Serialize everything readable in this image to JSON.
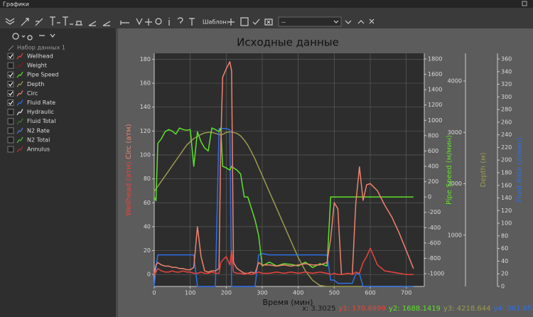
{
  "window": {
    "title": "Графики"
  },
  "toolbar": {
    "template_label": "Шаблон:",
    "template_value": "--"
  },
  "tree": {
    "root": "Набор данных 1",
    "items": [
      {
        "label": "Wellhead",
        "checked": true,
        "color": "#e8453c"
      },
      {
        "label": "Weight",
        "checked": false,
        "color": "#8b1a1a"
      },
      {
        "label": "Pipe Speed",
        "checked": true,
        "color": "#5ee02a"
      },
      {
        "label": "Depth",
        "checked": true,
        "color": "#9a9a50"
      },
      {
        "label": "Circ",
        "checked": true,
        "color": "#f0826e"
      },
      {
        "label": "Fluid Rate",
        "checked": true,
        "color": "#2f6fe6"
      },
      {
        "label": "Hydraulic",
        "checked": false,
        "color": "#e8e8e8"
      },
      {
        "label": "Fluid Total",
        "checked": false,
        "color": "#3d7a2a"
      },
      {
        "label": "N2 Rate",
        "checked": false,
        "color": "#4a7ad8"
      },
      {
        "label": "N2 Total",
        "checked": false,
        "color": "#4bc02a"
      },
      {
        "label": "Annulus",
        "checked": false,
        "color": "#b0302a"
      }
    ]
  },
  "chart_data": {
    "type": "line",
    "title": "Исходные данные",
    "x_label": "Время (мин)",
    "y_labels": [
      "Wellhead (атм)",
      "Circ (атм)"
    ],
    "y2_label": "Pipe Speed (м/мин)",
    "y3_label": "Depth (м)",
    "y4_label": "Fluid Rate (л/мин)",
    "grid": true,
    "xlim": [
      0,
      750
    ],
    "xticks": [
      0,
      100,
      200,
      300,
      400,
      500,
      600,
      700
    ],
    "ylim": [
      -10,
      185
    ],
    "yticks": [
      0,
      20,
      40,
      60,
      80,
      100,
      120,
      140,
      160,
      180
    ],
    "y2lim": [
      -1167,
      1874
    ],
    "y2ticks": [
      -1000,
      -800,
      -600,
      -400,
      -200,
      0,
      200,
      400,
      600,
      800,
      1000,
      1200,
      1400,
      1600,
      1800
    ],
    "y3lim": [
      0,
      4540
    ],
    "y3ticks": [
      1000,
      2000,
      3000,
      4000
    ],
    "y4lim": [
      0,
      369
    ],
    "y4ticks": [
      0,
      20,
      40,
      60,
      80,
      100,
      120,
      140,
      160,
      180,
      200,
      220,
      240,
      260,
      280,
      300,
      320,
      340,
      360
    ],
    "x": [
      0,
      5,
      10,
      20,
      30,
      40,
      50,
      60,
      70,
      80,
      90,
      100,
      110,
      120,
      130,
      140,
      150,
      160,
      170,
      180,
      185,
      190,
      200,
      210,
      215,
      220,
      230,
      240,
      250,
      260,
      270,
      280,
      290,
      300,
      320,
      340,
      360,
      380,
      400,
      420,
      440,
      460,
      480,
      490,
      500,
      510,
      520,
      540,
      550,
      560,
      570,
      580,
      590,
      600,
      620,
      640,
      660,
      680,
      700,
      720
    ],
    "series": [
      {
        "name": "Depth",
        "color": "#9a9a50",
        "axis": "y3",
        "values": [
          1850,
          1900,
          1950,
          2050,
          2150,
          2250,
          2350,
          2450,
          2550,
          2650,
          2750,
          2820,
          2880,
          2920,
          2960,
          2990,
          3000,
          3000,
          2980,
          2960,
          2950,
          2960,
          3000,
          3010,
          3010,
          3000,
          2980,
          2930,
          2850,
          2750,
          2620,
          2480,
          2320,
          2160,
          1840,
          1520,
          1200,
          880,
          560,
          300,
          120,
          20,
          0,
          0,
          0,
          0,
          0,
          0,
          0,
          0,
          0,
          0,
          0,
          0,
          0,
          0,
          0,
          0,
          0,
          0
        ]
      },
      {
        "name": "Fluid Rate",
        "color": "#2f6fe6",
        "axis": "y4",
        "values": [
          0,
          30,
          50,
          50,
          50,
          50,
          50,
          50,
          50,
          50,
          50,
          50,
          50,
          0,
          0,
          0,
          0,
          0,
          0,
          250,
          250,
          250,
          250,
          248,
          0,
          0,
          0,
          0,
          0,
          0,
          0,
          0,
          50,
          52,
          50,
          50,
          50,
          50,
          50,
          50,
          50,
          50,
          50,
          10,
          10,
          5,
          5,
          5,
          5,
          20,
          20,
          0,
          0,
          0,
          0,
          0,
          0,
          0,
          0,
          0
        ]
      },
      {
        "name": "Pipe Speed",
        "color": "#5ee02a",
        "axis": "y2",
        "values": [
          0,
          -50,
          700,
          760,
          850,
          880,
          860,
          820,
          900,
          880,
          870,
          880,
          400,
          850,
          720,
          640,
          600,
          900,
          880,
          850,
          900,
          400,
          380,
          350,
          400,
          380,
          350,
          300,
          0,
          0,
          -150,
          -300,
          -500,
          -900,
          -850,
          -900,
          -870,
          -880,
          -900,
          -850,
          -920,
          -870,
          -900,
          0,
          0,
          0,
          0,
          0,
          0,
          0,
          0,
          0,
          0,
          0,
          0,
          0,
          0,
          0,
          0,
          0
        ]
      },
      {
        "name": "Circ",
        "color": "#f0826e",
        "axis": "y",
        "values": [
          0,
          8,
          10,
          8,
          7,
          7,
          6,
          6,
          5,
          5,
          4,
          4,
          6,
          40,
          15,
          3,
          2,
          3,
          3,
          5,
          110,
          165,
          172,
          178,
          170,
          10,
          5,
          3,
          1,
          1,
          2,
          1,
          10,
          8,
          8,
          7,
          8,
          7,
          8,
          9,
          8,
          8,
          10,
          30,
          60,
          55,
          0,
          1,
          0,
          60,
          90,
          62,
          75,
          76,
          70,
          58,
          48,
          35,
          20,
          5
        ]
      },
      {
        "name": "Wellhead",
        "color": "#e8453c",
        "axis": "y",
        "values": [
          0,
          2,
          5,
          3,
          2,
          2,
          3,
          2,
          2,
          3,
          2,
          2,
          1,
          1,
          2,
          1,
          1,
          2,
          1,
          1,
          10,
          12,
          15,
          8,
          20,
          2,
          1,
          1,
          0,
          1,
          0,
          1,
          2,
          1,
          1,
          2,
          1,
          2,
          1,
          2,
          1,
          2,
          1,
          0,
          1,
          0,
          0,
          1,
          0,
          2,
          1,
          10,
          15,
          22,
          8,
          3,
          2,
          1,
          0,
          0
        ]
      }
    ]
  },
  "status": [
    {
      "text": "x: 3.3025",
      "color": "#1a1a1a"
    },
    {
      "text": "y1: 170.6999",
      "color": "#e8453c"
    },
    {
      "text": "y2: 1688.1419",
      "color": "#5ee02a"
    },
    {
      "text": "y3: 4218.644",
      "color": "#9a9a50"
    },
    {
      "text": "y4: 361.6575",
      "color": "#2f6fe6"
    }
  ]
}
